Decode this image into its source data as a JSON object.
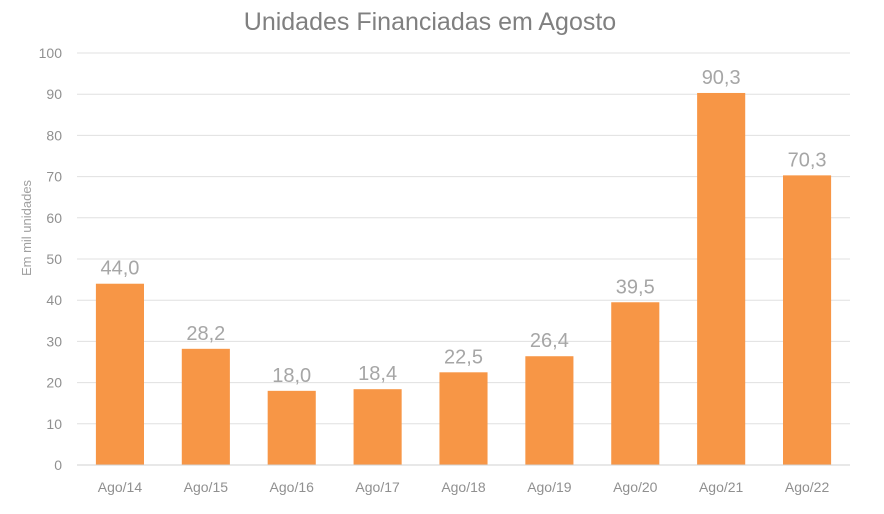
{
  "chart_data": {
    "type": "bar",
    "title": "Unidades Financiadas em Agosto",
    "xlabel": "",
    "ylabel": "Em mil unidades",
    "ylim": [
      0,
      100
    ],
    "yticks": [
      0,
      10,
      20,
      30,
      40,
      50,
      60,
      70,
      80,
      90,
      100
    ],
    "grid": true,
    "legend": "none",
    "categories": [
      "Ago/14",
      "Ago/15",
      "Ago/16",
      "Ago/17",
      "Ago/18",
      "Ago/19",
      "Ago/20",
      "Ago/21",
      "Ago/22"
    ],
    "values": [
      44.0,
      28.2,
      18.0,
      18.4,
      22.5,
      26.4,
      39.5,
      90.3,
      70.3
    ],
    "data_labels": [
      "44,0",
      "28,2",
      "18,0",
      "18,4",
      "22,5",
      "26,4",
      "39,5",
      "90,3",
      "70,3"
    ],
    "bar_color": "#F79646"
  }
}
